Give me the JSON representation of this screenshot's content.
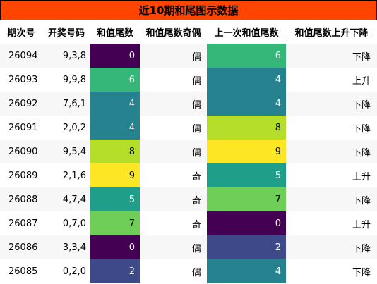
{
  "title": "近10期和尾图示数据",
  "headers": [
    "期次号",
    "开奖号码",
    "和值尾数",
    "和值尾数奇偶",
    "上一次和值尾数",
    "和值尾数上升下降"
  ],
  "colors": {
    "title_bg": "#ff4500",
    "colormap": "viridis",
    "dark_text": "#000000",
    "light_text": "#ffffff"
  },
  "chart_data": {
    "type": "table",
    "title": "近10期和尾图示数据",
    "columns": [
      "期次号",
      "开奖号码",
      "和值尾数",
      "和值尾数奇偶",
      "上一次和值尾数",
      "和值尾数上升下降"
    ],
    "color_scale": {
      "colormap": "viridis",
      "min": 0,
      "max": 9,
      "applied_to": [
        "和值尾数",
        "上一次和值尾数"
      ]
    },
    "rows": [
      {
        "period": "26094",
        "draw": "9,3,8",
        "tail": 0,
        "parity": "偶",
        "prev_tail": 6,
        "trend": "下降"
      },
      {
        "period": "26093",
        "draw": "9,9,8",
        "tail": 6,
        "parity": "偶",
        "prev_tail": 4,
        "trend": "上升"
      },
      {
        "period": "26092",
        "draw": "7,6,1",
        "tail": 4,
        "parity": "偶",
        "prev_tail": 4,
        "trend": "下降"
      },
      {
        "period": "26091",
        "draw": "2,0,2",
        "tail": 4,
        "parity": "偶",
        "prev_tail": 8,
        "trend": "下降"
      },
      {
        "period": "26090",
        "draw": "9,5,4",
        "tail": 8,
        "parity": "偶",
        "prev_tail": 9,
        "trend": "下降"
      },
      {
        "period": "26089",
        "draw": "2,1,6",
        "tail": 9,
        "parity": "奇",
        "prev_tail": 5,
        "trend": "上升"
      },
      {
        "period": "26088",
        "draw": "4,7,4",
        "tail": 5,
        "parity": "奇",
        "prev_tail": 7,
        "trend": "下降"
      },
      {
        "period": "26087",
        "draw": "0,7,0",
        "tail": 7,
        "parity": "奇",
        "prev_tail": 0,
        "trend": "上升"
      },
      {
        "period": "26086",
        "draw": "3,3,4",
        "tail": 0,
        "parity": "偶",
        "prev_tail": 2,
        "trend": "下降"
      },
      {
        "period": "26085",
        "draw": "0,2,0",
        "tail": 2,
        "parity": "偶",
        "prev_tail": 4,
        "trend": "下降"
      }
    ]
  }
}
